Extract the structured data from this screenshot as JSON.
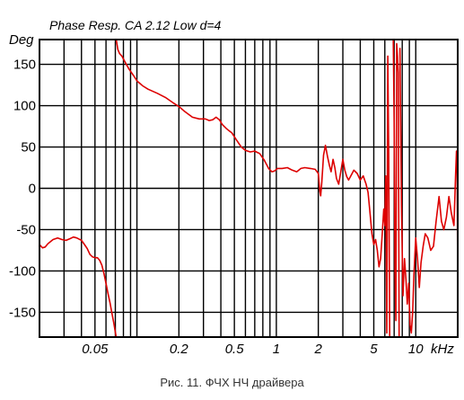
{
  "chart_data": {
    "type": "line",
    "title": "Phase Resp.  CA  2.12  Low  d=4",
    "ylabel": "Deg",
    "xlabel": "kHz",
    "x_scale": "log",
    "xlim": [
      0.02,
      20
    ],
    "ylim": [
      -180,
      180
    ],
    "grid": true,
    "x_ticks": [
      0.02,
      0.03,
      0.04,
      0.05,
      0.06,
      0.07,
      0.08,
      0.09,
      0.1,
      0.2,
      0.3,
      0.4,
      0.5,
      0.6,
      0.7,
      0.8,
      0.9,
      1,
      2,
      3,
      4,
      5,
      6,
      7,
      8,
      9,
      10,
      20
    ],
    "x_tick_labels": [
      {
        "value": 0.05,
        "label": "0.05"
      },
      {
        "value": 0.2,
        "label": "0.2"
      },
      {
        "value": 0.5,
        "label": "0.5"
      },
      {
        "value": 1,
        "label": "1"
      },
      {
        "value": 2,
        "label": "2"
      },
      {
        "value": 5,
        "label": "5"
      },
      {
        "value": 10,
        "label": "10"
      }
    ],
    "y_ticks": [
      {
        "value": 150,
        "label": "150"
      },
      {
        "value": 100,
        "label": "100"
      },
      {
        "value": 50,
        "label": "50"
      },
      {
        "value": 0,
        "label": "0"
      },
      {
        "value": -50,
        "label": "-50"
      },
      {
        "value": -100,
        "label": "-100"
      },
      {
        "value": -150,
        "label": "-150"
      }
    ],
    "series": [
      {
        "color": "#dd0000",
        "segments": [
          [
            [
              0.02,
              -68
            ],
            [
              0.021,
              -72
            ],
            [
              0.022,
              -71
            ],
            [
              0.023,
              -67
            ],
            [
              0.025,
              -62
            ],
            [
              0.027,
              -60
            ],
            [
              0.029,
              -62
            ],
            [
              0.031,
              -63
            ],
            [
              0.033,
              -61
            ],
            [
              0.035,
              -59
            ],
            [
              0.037,
              -60
            ],
            [
              0.04,
              -63
            ],
            [
              0.042,
              -68
            ],
            [
              0.044,
              -73
            ],
            [
              0.046,
              -80
            ],
            [
              0.048,
              -83
            ],
            [
              0.05,
              -84
            ],
            [
              0.052,
              -84
            ],
            [
              0.054,
              -87
            ],
            [
              0.056,
              -93
            ],
            [
              0.058,
              -103
            ],
            [
              0.06,
              -115
            ],
            [
              0.062,
              -127
            ],
            [
              0.064,
              -138
            ],
            [
              0.066,
              -150
            ],
            [
              0.068,
              -162
            ],
            [
              0.07,
              -174
            ],
            [
              0.071,
              -180
            ]
          ],
          [
            [
              0.071,
              180
            ],
            [
              0.073,
              168
            ],
            [
              0.075,
              163
            ],
            [
              0.078,
              160
            ],
            [
              0.082,
              153
            ],
            [
              0.088,
              144
            ],
            [
              0.095,
              136
            ],
            [
              0.1,
              130
            ],
            [
              0.11,
              124
            ],
            [
              0.12,
              120
            ],
            [
              0.14,
              115
            ],
            [
              0.16,
              110
            ],
            [
              0.18,
              104
            ],
            [
              0.2,
              99
            ],
            [
              0.22,
              93
            ],
            [
              0.25,
              86
            ],
            [
              0.28,
              84
            ],
            [
              0.31,
              84
            ],
            [
              0.33,
              82
            ],
            [
              0.35,
              83
            ],
            [
              0.37,
              86
            ],
            [
              0.39,
              83
            ],
            [
              0.41,
              77
            ],
            [
              0.44,
              72
            ],
            [
              0.48,
              67
            ],
            [
              0.52,
              58
            ],
            [
              0.56,
              50
            ],
            [
              0.6,
              46
            ],
            [
              0.65,
              44
            ],
            [
              0.7,
              45
            ],
            [
              0.76,
              42
            ],
            [
              0.82,
              34
            ],
            [
              0.88,
              24
            ],
            [
              0.93,
              20
            ],
            [
              0.97,
              21
            ],
            [
              1.02,
              24
            ],
            [
              1.1,
              24
            ],
            [
              1.2,
              25
            ],
            [
              1.3,
              22
            ],
            [
              1.4,
              20
            ],
            [
              1.5,
              24
            ],
            [
              1.6,
              25
            ],
            [
              1.75,
              24
            ],
            [
              1.9,
              23
            ],
            [
              2.0,
              18
            ],
            [
              2.05,
              -3
            ],
            [
              2.08,
              -9
            ],
            [
              2.12,
              8
            ],
            [
              2.18,
              40
            ],
            [
              2.25,
              52
            ],
            [
              2.33,
              38
            ],
            [
              2.4,
              28
            ],
            [
              2.47,
              20
            ],
            [
              2.55,
              35
            ],
            [
              2.63,
              25
            ],
            [
              2.7,
              12
            ],
            [
              2.8,
              5
            ],
            [
              2.9,
              20
            ],
            [
              3.0,
              35
            ],
            [
              3.1,
              22
            ],
            [
              3.2,
              14
            ],
            [
              3.3,
              10
            ],
            [
              3.45,
              16
            ],
            [
              3.6,
              22
            ],
            [
              3.8,
              18
            ],
            [
              4.0,
              10
            ],
            [
              4.2,
              15
            ],
            [
              4.4,
              5
            ],
            [
              4.55,
              -5
            ],
            [
              4.7,
              -30
            ],
            [
              4.85,
              -55
            ],
            [
              5.0,
              -68
            ],
            [
              5.15,
              -62
            ],
            [
              5.3,
              -75
            ],
            [
              5.45,
              -95
            ],
            [
              5.6,
              -85
            ],
            [
              5.75,
              -55
            ],
            [
              5.9,
              -25
            ],
            [
              6.0,
              -45
            ],
            [
              6.1,
              15
            ],
            [
              6.2,
              -175
            ],
            [
              6.3,
              160
            ],
            [
              6.4,
              40
            ],
            [
              6.5,
              -180
            ]
          ],
          [
            [
              6.9,
              180
            ],
            [
              7.0,
              80
            ],
            [
              7.1,
              -100
            ],
            [
              7.2,
              -160
            ],
            [
              7.3,
              175
            ],
            [
              7.4,
              160
            ],
            [
              7.5,
              140
            ],
            [
              7.6,
              -180
            ]
          ],
          [
            [
              7.7,
              170
            ],
            [
              7.9,
              -20
            ],
            [
              8.1,
              -130
            ],
            [
              8.3,
              -85
            ],
            [
              8.5,
              -110
            ],
            [
              8.7,
              -140
            ],
            [
              8.9,
              -115
            ],
            [
              9.1,
              -165
            ],
            [
              9.3,
              -175
            ],
            [
              9.5,
              -150
            ],
            [
              9.7,
              -105
            ],
            [
              10.0,
              -60
            ],
            [
              10.3,
              -85
            ],
            [
              10.6,
              -120
            ],
            [
              10.9,
              -90
            ],
            [
              11.3,
              -70
            ],
            [
              11.7,
              -55
            ],
            [
              12.2,
              -60
            ],
            [
              12.8,
              -75
            ],
            [
              13.4,
              -70
            ],
            [
              14.0,
              -40
            ],
            [
              14.7,
              -10
            ],
            [
              15.3,
              -40
            ],
            [
              15.9,
              -50
            ],
            [
              16.6,
              -35
            ],
            [
              17.3,
              -10
            ],
            [
              18.0,
              -30
            ],
            [
              18.8,
              -45
            ],
            [
              19.3,
              15
            ],
            [
              19.6,
              45
            ],
            [
              19.8,
              30
            ],
            [
              20.0,
              -110
            ]
          ]
        ]
      }
    ]
  },
  "caption": "Рис. 11. ФЧХ НЧ драйвера"
}
